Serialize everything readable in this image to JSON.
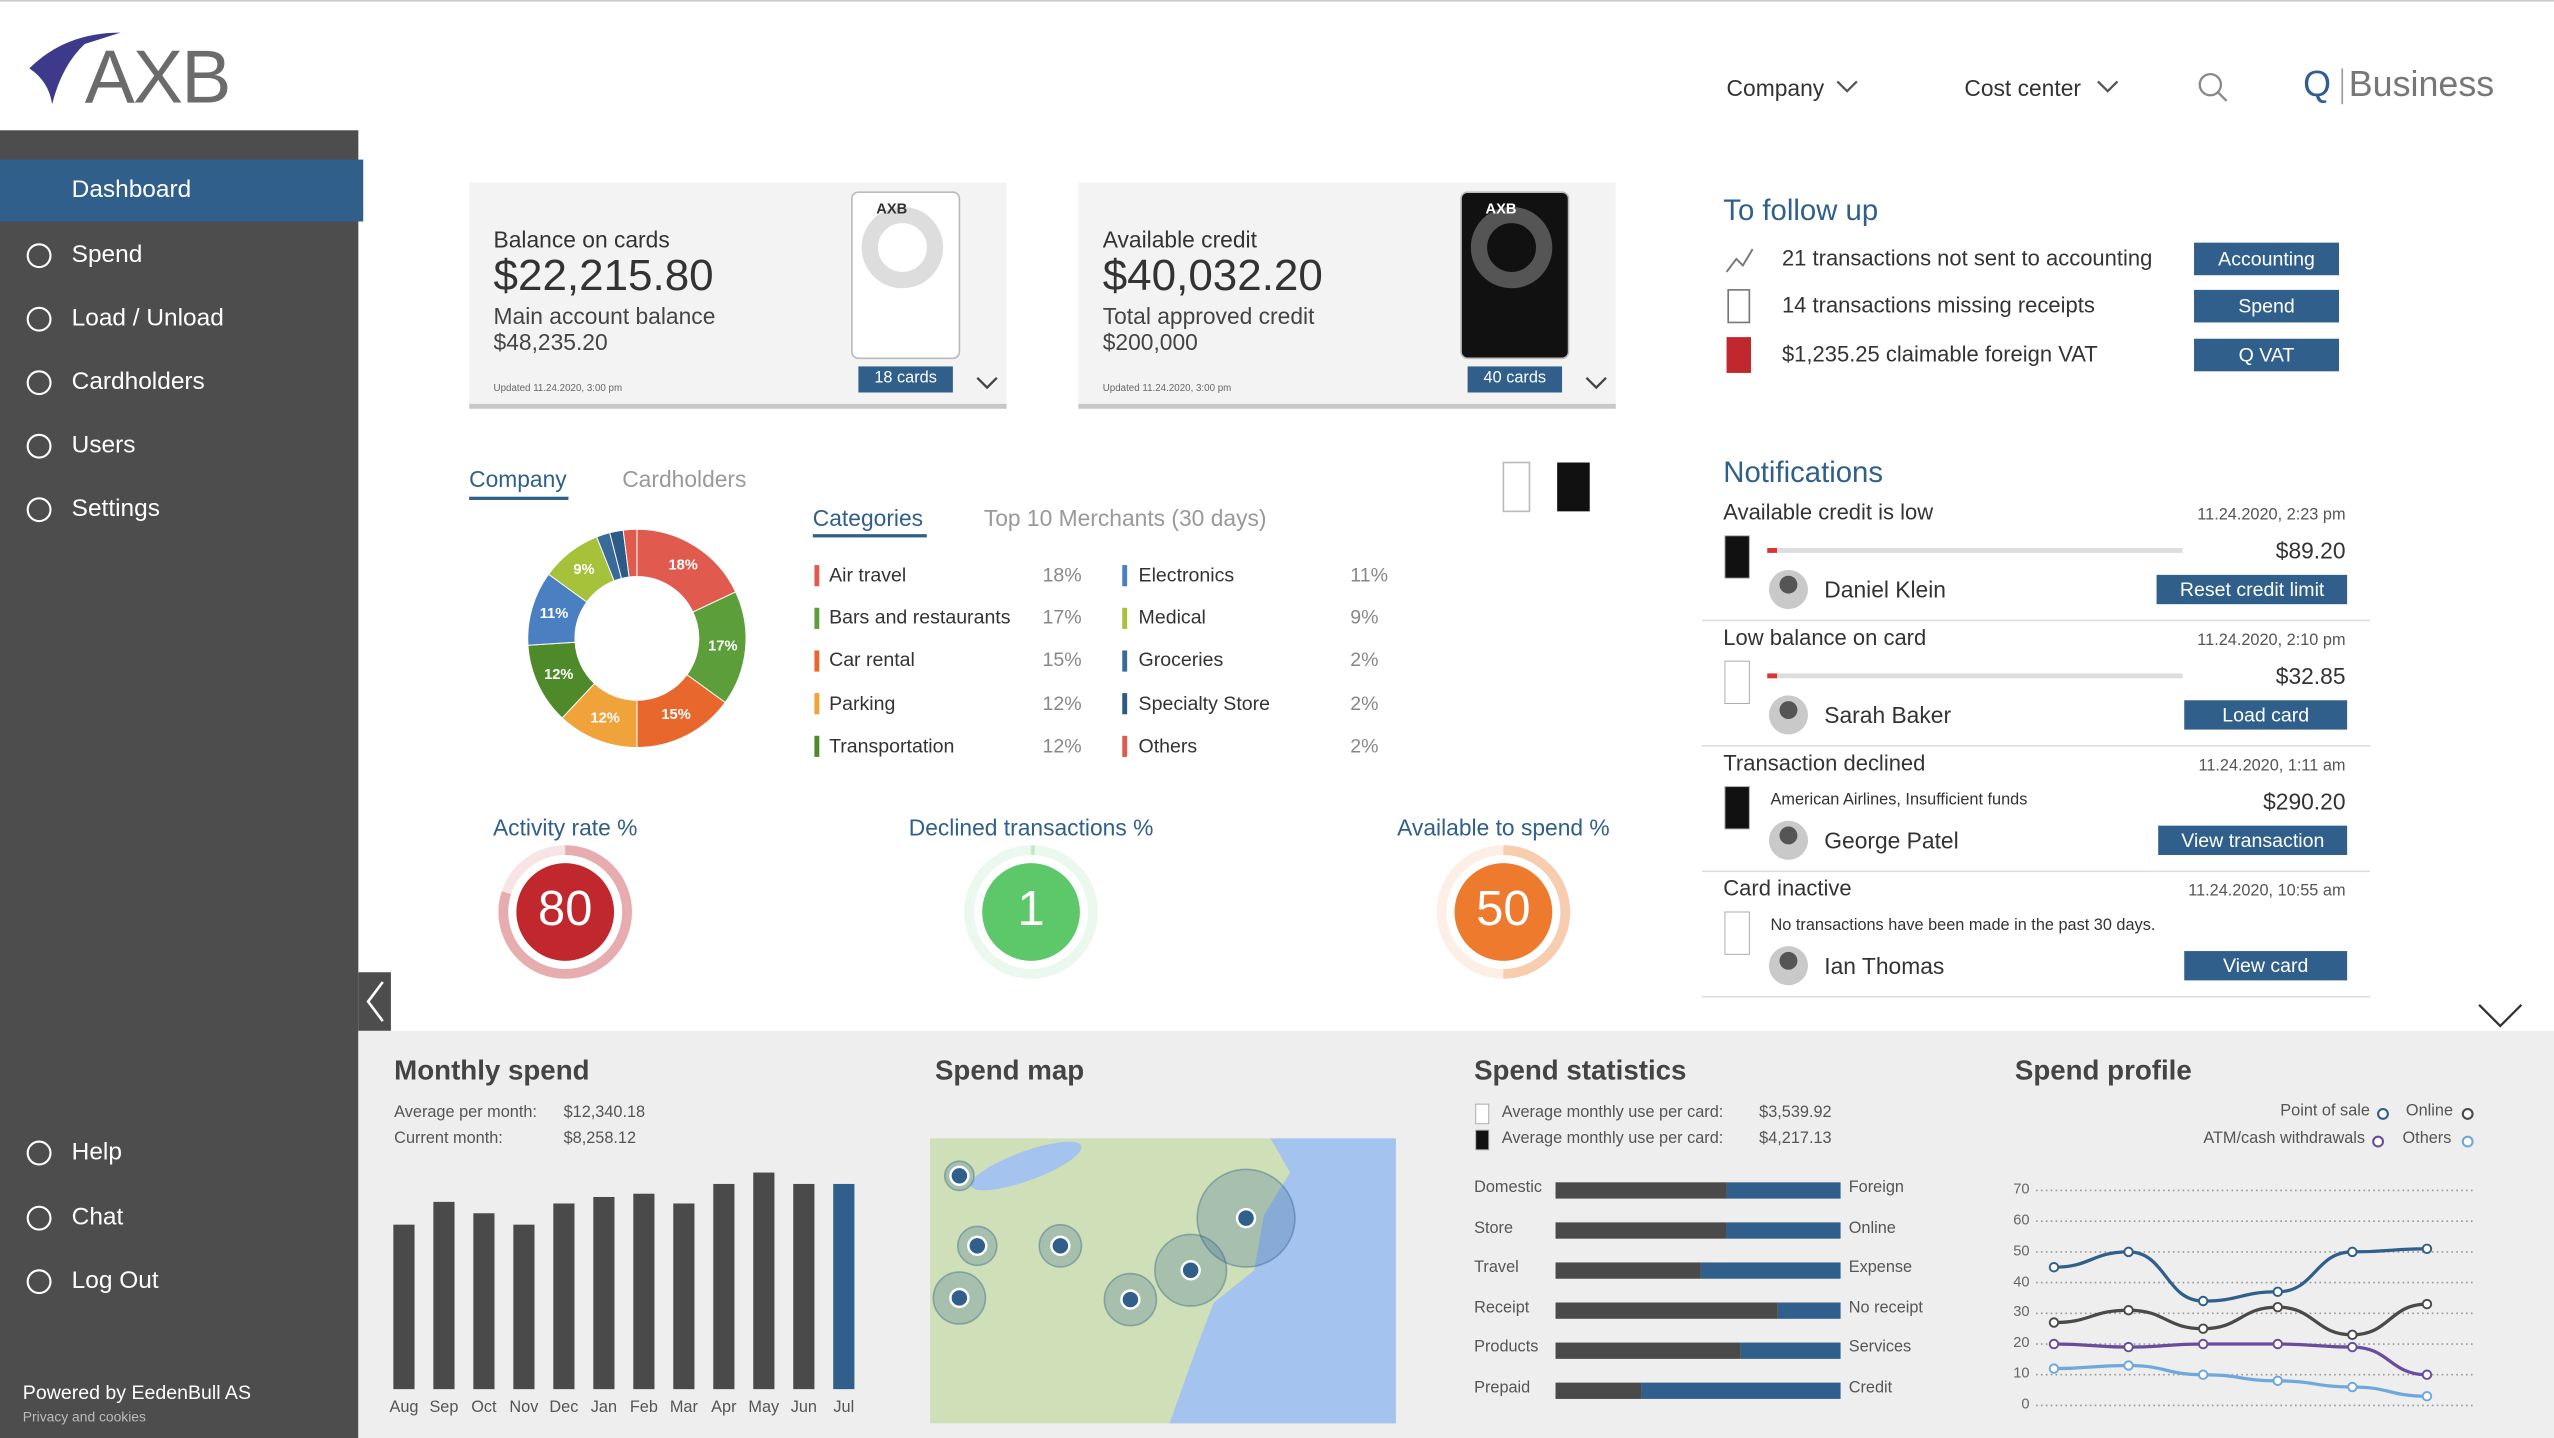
{
  "header": {
    "logo": "AXB",
    "nav": [
      "Company",
      "Cost center"
    ],
    "brand_q": "Q",
    "brand": "Business"
  },
  "sidebar": {
    "menu": [
      "Dashboard",
      "Spend",
      "Load / Unload",
      "Cardholders",
      "Users",
      "Settings"
    ],
    "bottom_menu": [
      "Help",
      "Chat",
      "Log Out"
    ],
    "powered_by": "Powered by EedenBull AS",
    "privacy": "Privacy and cookies"
  },
  "cards": [
    {
      "title": "Balance on cards",
      "amount": "$22,215.80",
      "subtitle": "Main account balance",
      "subtitle_amount": "$48,235.20",
      "updated": "Updated 11.24.2020, 3:00 pm",
      "badge": "18 cards"
    },
    {
      "title": "Available credit",
      "amount": "$40,032.20",
      "subtitle": "Total approved credit",
      "subtitle_amount": "$200,000",
      "updated": "Updated 11.24.2020, 3:00 pm",
      "badge": "40 cards"
    }
  ],
  "tabs": [
    "Company",
    "Cardholders"
  ],
  "subtabs": [
    "Categories",
    "Top 10 Merchants (30 days)"
  ],
  "gauges": [
    {
      "label": "Activity rate %",
      "value": 80,
      "color": "#c0282d"
    },
    {
      "label": "Declined transactions %",
      "value": 1,
      "color": "#5cc86a"
    },
    {
      "label": "Available to spend %",
      "value": 50,
      "color": "#ee7a2e"
    }
  ],
  "follow_up": {
    "title": "To follow up",
    "items": [
      {
        "text": "21 transactions not sent to accounting",
        "button": "Accounting"
      },
      {
        "text": "14 transactions missing receipts",
        "button": "Spend"
      },
      {
        "text": "$1,235.25 claimable foreign VAT",
        "button": "Q VAT"
      }
    ]
  },
  "notifications": {
    "title": "Notifications",
    "items": [
      {
        "title": "Available credit is low",
        "date": "11.24.2020, 2:23 pm",
        "amount": "$89.20",
        "name": "Daniel Klein",
        "button": "Reset credit limit"
      },
      {
        "title": "Low balance on card",
        "date": "11.24.2020, 2:10 pm",
        "amount": "$32.85",
        "name": "Sarah Baker",
        "button": "Load card"
      },
      {
        "title": "Transaction declined",
        "date": "11.24.2020, 1:11 am",
        "note": "American Airlines, Insufficient funds",
        "amount": "$290.20",
        "name": "George Patel",
        "button": "View transaction"
      },
      {
        "title": "Card inactive",
        "date": "11.24.2020, 10:55 am",
        "note": "No transactions have been made in the past 30 days.",
        "name": "Ian Thomas",
        "button": "View card"
      }
    ]
  },
  "spend_map": {
    "title": "Spend map"
  },
  "chart_data": [
    {
      "type": "pie",
      "donut": true,
      "categories": [
        "Air travel",
        "Bars and restaurants",
        "Car rental",
        "Parking",
        "Transportation",
        "Electronics",
        "Medical",
        "Groceries",
        "Specialty Store",
        "Others"
      ],
      "values": [
        18,
        17,
        15,
        12,
        12,
        11,
        9,
        2,
        2,
        2
      ],
      "value_labels": [
        "18%",
        "17%",
        "15%",
        "12%",
        "12%",
        "11%",
        "9%",
        "2%",
        "2%",
        "2%"
      ],
      "colors": [
        "#e05a4e",
        "#5c9e3a",
        "#e8672c",
        "#f0a33a",
        "#4f8a2a",
        "#4a7fc1",
        "#a6c23a",
        "#3a6a9a",
        "#2d5a87",
        "#e05a4e"
      ]
    },
    {
      "type": "bar",
      "title": "Monthly spend",
      "stats": [
        {
          "label": "Average per month:",
          "value": "$12,340.18"
        },
        {
          "label": "Current month:",
          "value": "$8,258.12"
        }
      ],
      "categories": [
        "Aug",
        "Sep",
        "Oct",
        "Nov",
        "Dec",
        "Jan",
        "Feb",
        "Mar",
        "Apr",
        "May",
        "Jun",
        "Jul"
      ],
      "values": [
        101,
        115,
        108,
        101,
        114,
        118,
        120,
        114,
        126,
        133,
        126,
        126
      ],
      "colors": [
        "#4a4a4a",
        "#4a4a4a",
        "#4a4a4a",
        "#4a4a4a",
        "#4a4a4a",
        "#4a4a4a",
        "#4a4a4a",
        "#4a4a4a",
        "#4a4a4a",
        "#4a4a4a",
        "#4a4a4a",
        "#2f5f8a"
      ],
      "ylim": [
        0,
        140
      ]
    },
    {
      "type": "bar",
      "orientation": "horizontal",
      "stacked": true,
      "title": "Spend statistics",
      "stats": [
        {
          "label": "Average monthly use per card:",
          "value": "$3,539.92"
        },
        {
          "label": "Average monthly use per card:",
          "value": "$4,217.13"
        }
      ],
      "categories": [
        "Domestic",
        "Store",
        "Travel",
        "Receipt",
        "Products",
        "Prepaid"
      ],
      "categories_right": [
        "Foreign",
        "Online",
        "Expense",
        "No receipt",
        "Services",
        "Credit"
      ],
      "series": [
        {
          "color": "#4a4a4a",
          "values": [
            60,
            60,
            51,
            78,
            65,
            30
          ]
        },
        {
          "color": "#2f5f8a",
          "values": [
            40,
            40,
            49,
            22,
            35,
            70
          ]
        }
      ],
      "xlim": [
        0,
        100
      ]
    },
    {
      "type": "line",
      "title": "Spend profile",
      "categories": [
        null,
        null,
        null,
        null,
        null,
        null
      ],
      "series": [
        {
          "name": "Point of sale",
          "color": "#2f5f8a",
          "values": [
            45,
            50,
            34,
            37,
            50,
            51
          ]
        },
        {
          "name": "Online",
          "color": "#4a4a4a",
          "values": [
            27,
            31,
            25,
            32,
            23,
            33
          ]
        },
        {
          "name": "ATM/cash withdrawals",
          "color": "#6a4c9c",
          "values": [
            20,
            19,
            20,
            20,
            19,
            10
          ]
        },
        {
          "name": "Others",
          "color": "#6fa8dc",
          "values": [
            12,
            13,
            10,
            8,
            6,
            3
          ]
        }
      ],
      "ylim": [
        0,
        70
      ],
      "yticks": [
        0,
        10,
        20,
        30,
        40,
        50,
        60,
        70
      ],
      "grid": true
    }
  ]
}
